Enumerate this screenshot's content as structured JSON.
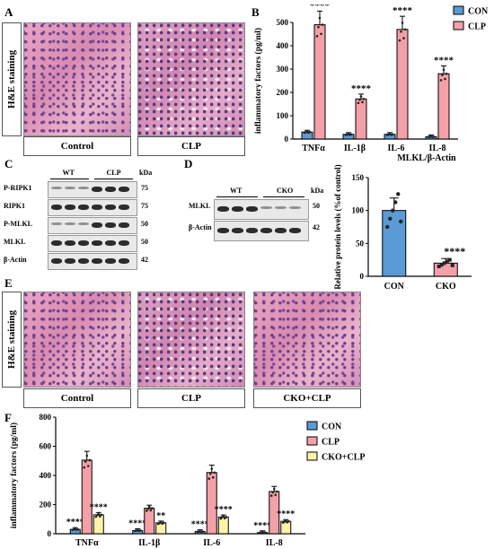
{
  "panels": {
    "a": {
      "label": "A",
      "side": "H&E staining",
      "captions": [
        "Control",
        "CLP"
      ]
    },
    "b": {
      "label": "B"
    },
    "c": {
      "label": "C",
      "groups": [
        "WT",
        "CLP"
      ],
      "kda": "kDa",
      "rows": [
        {
          "name": "P-RIPK1",
          "kda": "75"
        },
        {
          "name": "RIPK1",
          "kda": "75"
        },
        {
          "name": "P-MLKL",
          "kda": "50"
        },
        {
          "name": "MLKL",
          "kda": "50"
        },
        {
          "name": "β-Actin",
          "kda": "42"
        }
      ]
    },
    "d": {
      "label": "D",
      "groups": [
        "WT",
        "CKO"
      ],
      "kda": "kDa",
      "rows": [
        {
          "name": "MLKL",
          "kda": "50"
        },
        {
          "name": "β-Actin",
          "kda": "42"
        }
      ]
    },
    "e": {
      "label": "E",
      "side": "H&E staining",
      "captions": [
        "Control",
        "CLP",
        "CKO+CLP"
      ]
    },
    "f": {
      "label": "F"
    }
  },
  "chart_data": [
    {
      "id": "B",
      "type": "bar",
      "categories": [
        "TNFα",
        "IL-1β",
        "IL-6",
        "IL-8"
      ],
      "ylabel": "inflammatory factors (pg/ml)",
      "ylim": [
        0,
        500
      ],
      "yticks": [
        0,
        100,
        200,
        300,
        400,
        500
      ],
      "series": [
        {
          "name": "CON",
          "values": [
            30,
            20,
            20,
            10
          ],
          "color": "#5b9bd5"
        },
        {
          "name": "CLP",
          "values": [
            490,
            172,
            470,
            280
          ],
          "color": "#f4a0a8"
        }
      ],
      "annotations": [
        "****",
        "****",
        "****",
        "****"
      ],
      "legend": "top-right"
    },
    {
      "id": "D",
      "type": "bar",
      "title": "MLKL/β-Actin",
      "categories": [
        "CON",
        "CKO"
      ],
      "ylabel": "Relative protein levels (%of control)",
      "ylim": [
        0,
        150
      ],
      "yticks": [
        0,
        50,
        100,
        150
      ],
      "values": [
        100,
        20
      ],
      "colors": [
        "#5b9bd5",
        "#f4a0a8"
      ],
      "annotations": [
        "",
        "****"
      ]
    },
    {
      "id": "F",
      "type": "bar",
      "categories": [
        "TNFα",
        "IL-1β",
        "IL-6",
        "IL-8"
      ],
      "ylabel": "inflammatory factors (pg/ml)",
      "ylim": [
        0,
        800
      ],
      "yticks": [
        0,
        200,
        400,
        600,
        800
      ],
      "series": [
        {
          "name": "CON",
          "values": [
            30,
            22,
            15,
            8
          ],
          "color": "#5b9bd5"
        },
        {
          "name": "CLP",
          "values": [
            505,
            175,
            420,
            290
          ],
          "color": "#f4a0a8"
        },
        {
          "name": "CKO+CLP",
          "values": [
            130,
            75,
            115,
            85
          ],
          "color": "#fbf3a8"
        }
      ],
      "annotations": [
        [
          "****",
          "",
          "****"
        ],
        [
          "****",
          "",
          "**"
        ],
        [
          "****",
          "",
          "****"
        ],
        [
          "****",
          "",
          "****"
        ]
      ],
      "legend": "right"
    }
  ]
}
